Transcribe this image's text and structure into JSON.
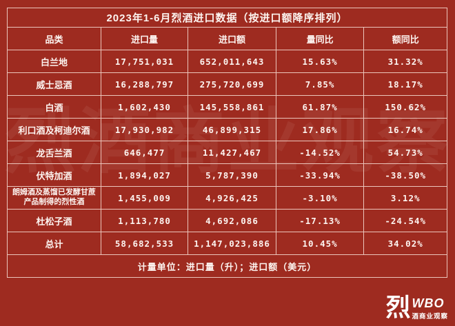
{
  "page": {
    "background_color": "#9E2B20",
    "border_color": "#ECC6BC",
    "text_color": "#FDF4F0"
  },
  "watermark_text": "烈酒商业观察",
  "table": {
    "title": "2023年1-6月烈酒进口数据（按进口额降序排列）",
    "columns": {
      "category": "品类",
      "volume": "进口量",
      "value": "进口额",
      "volume_yoy": "量同比",
      "value_yoy": "额同比"
    },
    "rows": [
      {
        "category": "白兰地",
        "volume": "17,751,031",
        "value": "652,011,643",
        "volume_yoy": "15.63%",
        "value_yoy": "31.32%"
      },
      {
        "category": "威士忌酒",
        "volume": "16,288,797",
        "value": "275,720,699",
        "volume_yoy": "7.85%",
        "value_yoy": "18.17%"
      },
      {
        "category": "白酒",
        "volume": "1,602,430",
        "value": "145,558,861",
        "volume_yoy": "61.87%",
        "value_yoy": "150.62%"
      },
      {
        "category": "利口酒及柯迪尔酒",
        "volume": "17,930,982",
        "value": "46,899,315",
        "volume_yoy": "17.86%",
        "value_yoy": "16.74%"
      },
      {
        "category": "龙舌兰酒",
        "volume": "646,477",
        "value": "11,427,467",
        "volume_yoy": "-14.52%",
        "value_yoy": "54.73%"
      },
      {
        "category": "伏特加酒",
        "volume": "1,894,027",
        "value": "5,787,390",
        "volume_yoy": "-33.94%",
        "value_yoy": "-38.50%"
      },
      {
        "category": "朗姆酒及蒸馏已发酵甘蔗产品制得的烈性酒",
        "volume": "1,455,009",
        "value": "4,926,425",
        "volume_yoy": "-3.10%",
        "value_yoy": "3.12%"
      },
      {
        "category": "杜松子酒",
        "volume": "1,113,780",
        "value": "4,692,086",
        "volume_yoy": "-17.13%",
        "value_yoy": "-24.54%"
      },
      {
        "category": "总计",
        "volume": "58,682,533",
        "value": "1,147,023,886",
        "volume_yoy": "10.45%",
        "value_yoy": "34.02%"
      }
    ],
    "footnote": "计量单位：进口量（升）；进口额（美元）"
  },
  "logo": {
    "lie_char": "烈",
    "wbo": "WBO",
    "subtitle": "酒商业观察"
  },
  "chart_data": {
    "type": "table",
    "title": "2023年1-6月烈酒进口数据（按进口额降序排列）",
    "columns": [
      "品类",
      "进口量",
      "进口额",
      "量同比",
      "额同比"
    ],
    "units": "计量单位：进口量（升）；进口额（美元）",
    "rows": [
      [
        "白兰地",
        17751031,
        652011643,
        "15.63%",
        "31.32%"
      ],
      [
        "威士忌酒",
        16288797,
        275720699,
        "7.85%",
        "18.17%"
      ],
      [
        "白酒",
        1602430,
        145558861,
        "61.87%",
        "150.62%"
      ],
      [
        "利口酒及柯迪尔酒",
        17930982,
        46899315,
        "17.86%",
        "16.74%"
      ],
      [
        "龙舌兰酒",
        646477,
        11427467,
        "-14.52%",
        "54.73%"
      ],
      [
        "伏特加酒",
        1894027,
        5787390,
        "-33.94%",
        "-38.50%"
      ],
      [
        "朗姆酒及蒸馏已发酵甘蔗产品制得的烈性酒",
        1455009,
        4926425,
        "-3.10%",
        "3.12%"
      ],
      [
        "杜松子酒",
        1113780,
        4692086,
        "-17.13%",
        "-24.54%"
      ],
      [
        "总计",
        58682533,
        1147023886,
        "10.45%",
        "34.02%"
      ]
    ]
  }
}
